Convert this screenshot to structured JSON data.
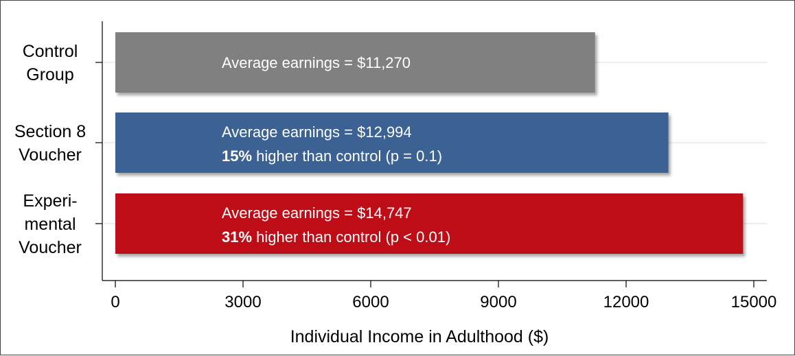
{
  "chart_data": {
    "type": "bar",
    "orientation": "horizontal",
    "categories": [
      [
        "Control",
        "Group"
      ],
      [
        "Section 8",
        "Voucher"
      ],
      [
        "Experi-",
        "mental",
        "Voucher"
      ]
    ],
    "values": [
      11270,
      12994,
      14747
    ],
    "colors": [
      "#808080",
      "#3B6293",
      "#BE0A16"
    ],
    "annotations": [
      {
        "line1": "Average earnings = $11,270",
        "bold": "",
        "rest": ""
      },
      {
        "line1": "Average earnings = $12,994",
        "bold": "15%",
        "rest": " higher than control (p = 0.1)"
      },
      {
        "line1": "Average earnings = $14,747",
        "bold": "31%",
        "rest": " higher than control (p < 0.01)"
      }
    ],
    "xlim": [
      0,
      15000
    ],
    "xticks": [
      0,
      3000,
      6000,
      9000,
      12000,
      15000
    ],
    "xlabel": "Individual Income in Adulthood ($)",
    "ylabel": "",
    "title": "",
    "grid": true,
    "legend": "none"
  }
}
